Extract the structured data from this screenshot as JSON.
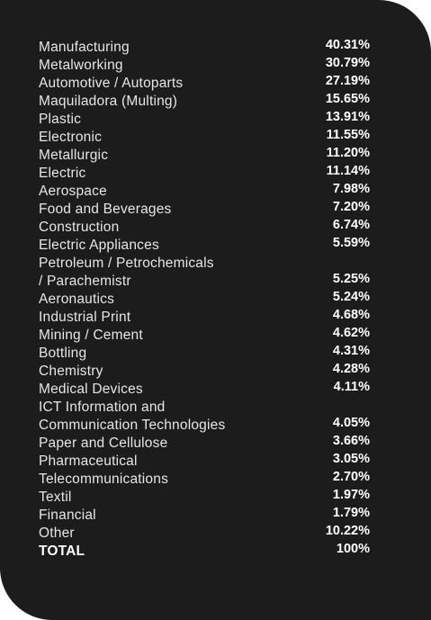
{
  "table": {
    "rows": [
      [
        "Manufacturing",
        "40.31%"
      ],
      [
        "Metalworking",
        "30.79%"
      ],
      [
        "Automotive / Autoparts",
        "27.19%"
      ],
      [
        "Maquiladora (Multing)",
        "15.65%"
      ],
      [
        "Plastic",
        "13.91%"
      ],
      [
        "Electronic",
        "11.55%"
      ],
      [
        "Metallurgic",
        "11.20%"
      ],
      [
        "Electric",
        "11.14%"
      ],
      [
        "Aerospace",
        "7.98%"
      ],
      [
        "Food and Beverages",
        "7.20%"
      ],
      [
        "Construction",
        "6.74%"
      ],
      [
        "Electric Appliances",
        "5.59%"
      ],
      [
        "Petroleum / Petrochemicals\n/ Parachemistr",
        "5.25%"
      ],
      [
        "Aeronautics",
        "5.24%"
      ],
      [
        "Industrial Print",
        "4.68%"
      ],
      [
        "Mining / Cement",
        "4.62%"
      ],
      [
        "Bottling",
        "4.31%"
      ],
      [
        "Chemistry",
        "4.28%"
      ],
      [
        "Medical Devices",
        "4.11%"
      ],
      [
        "ICT Information and\nCommunication Technologies",
        "4.05%"
      ],
      [
        "Paper and Cellulose",
        "3.66%"
      ],
      [
        "Pharmaceutical",
        "3.05%"
      ],
      [
        "Telecommunications",
        "2.70%"
      ],
      [
        "Textil",
        "1.97%"
      ],
      [
        "Financial",
        "1.79%"
      ],
      [
        "Other",
        "10.22%"
      ],
      [
        "TOTAL",
        "100%"
      ]
    ]
  }
}
